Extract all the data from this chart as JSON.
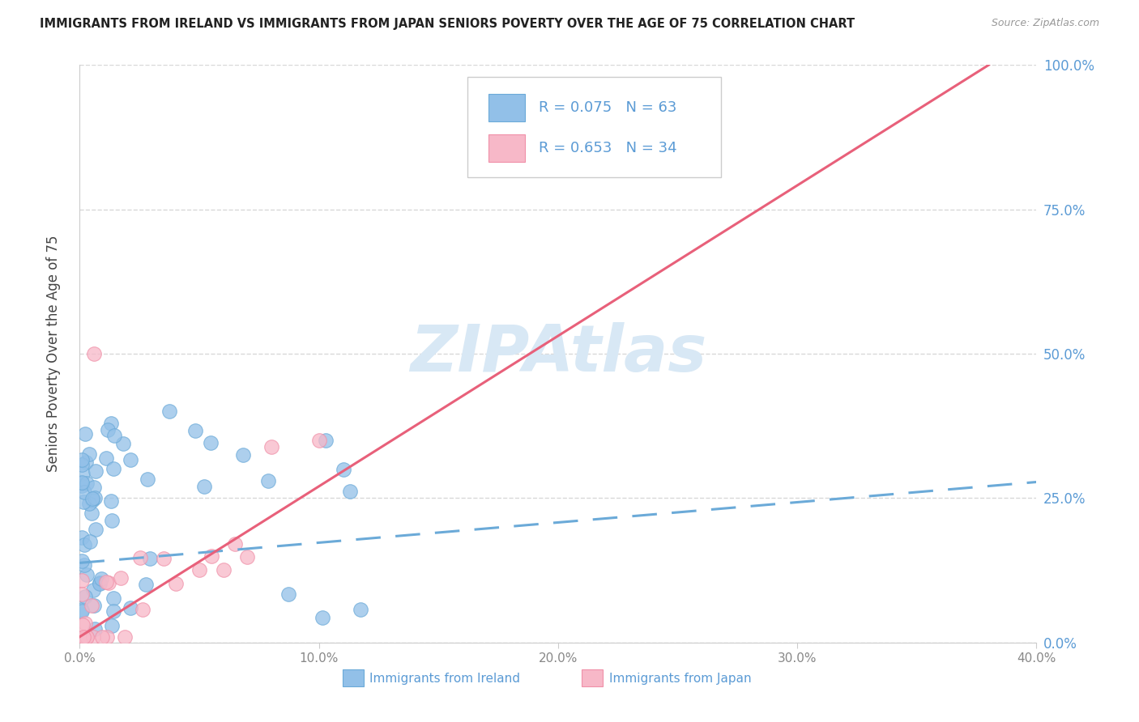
{
  "title": "IMMIGRANTS FROM IRELAND VS IMMIGRANTS FROM JAPAN SENIORS POVERTY OVER THE AGE OF 75 CORRELATION CHART",
  "source": "Source: ZipAtlas.com",
  "ylabel": "Seniors Poverty Over the Age of 75",
  "xlim": [
    0.0,
    0.4
  ],
  "ylim": [
    0.0,
    1.0
  ],
  "xtick_vals": [
    0.0,
    0.1,
    0.2,
    0.3,
    0.4
  ],
  "xticklabels": [
    "0.0%",
    "10.0%",
    "20.0%",
    "30.0%",
    "40.0%"
  ],
  "ytick_vals": [
    0.0,
    0.25,
    0.5,
    0.75,
    1.0
  ],
  "yticklabels": [
    "0.0%",
    "25.0%",
    "50.0%",
    "75.0%",
    "100.0%"
  ],
  "ireland_color": "#92c0e8",
  "ireland_edge": "#6baad8",
  "japan_color": "#f7b8c8",
  "japan_edge": "#f090a8",
  "ireland_R": 0.075,
  "ireland_N": 63,
  "japan_R": 0.653,
  "japan_N": 34,
  "ireland_trend_color": "#6baad8",
  "japan_trend_color": "#e8607a",
  "watermark_text": "ZIPAtlas",
  "watermark_color": "#d8e8f5",
  "legend_label_ireland": "Immigrants from Ireland",
  "legend_label_japan": "Immigrants from Japan",
  "background_color": "#ffffff",
  "grid_color": "#d8d8d8",
  "tick_color": "#888888",
  "right_tick_color": "#5b9bd5",
  "title_color": "#222222",
  "source_color": "#999999",
  "ylabel_color": "#444444",
  "bottom_legend_color": "#5b9bd5",
  "ireland_trend_x0": 0.0,
  "ireland_trend_y0": 0.138,
  "ireland_trend_x1": 0.4,
  "ireland_trend_y1": 0.278,
  "japan_trend_x0": 0.0,
  "japan_trend_y0": 0.01,
  "japan_trend_x1": 0.38,
  "japan_trend_y1": 1.0
}
